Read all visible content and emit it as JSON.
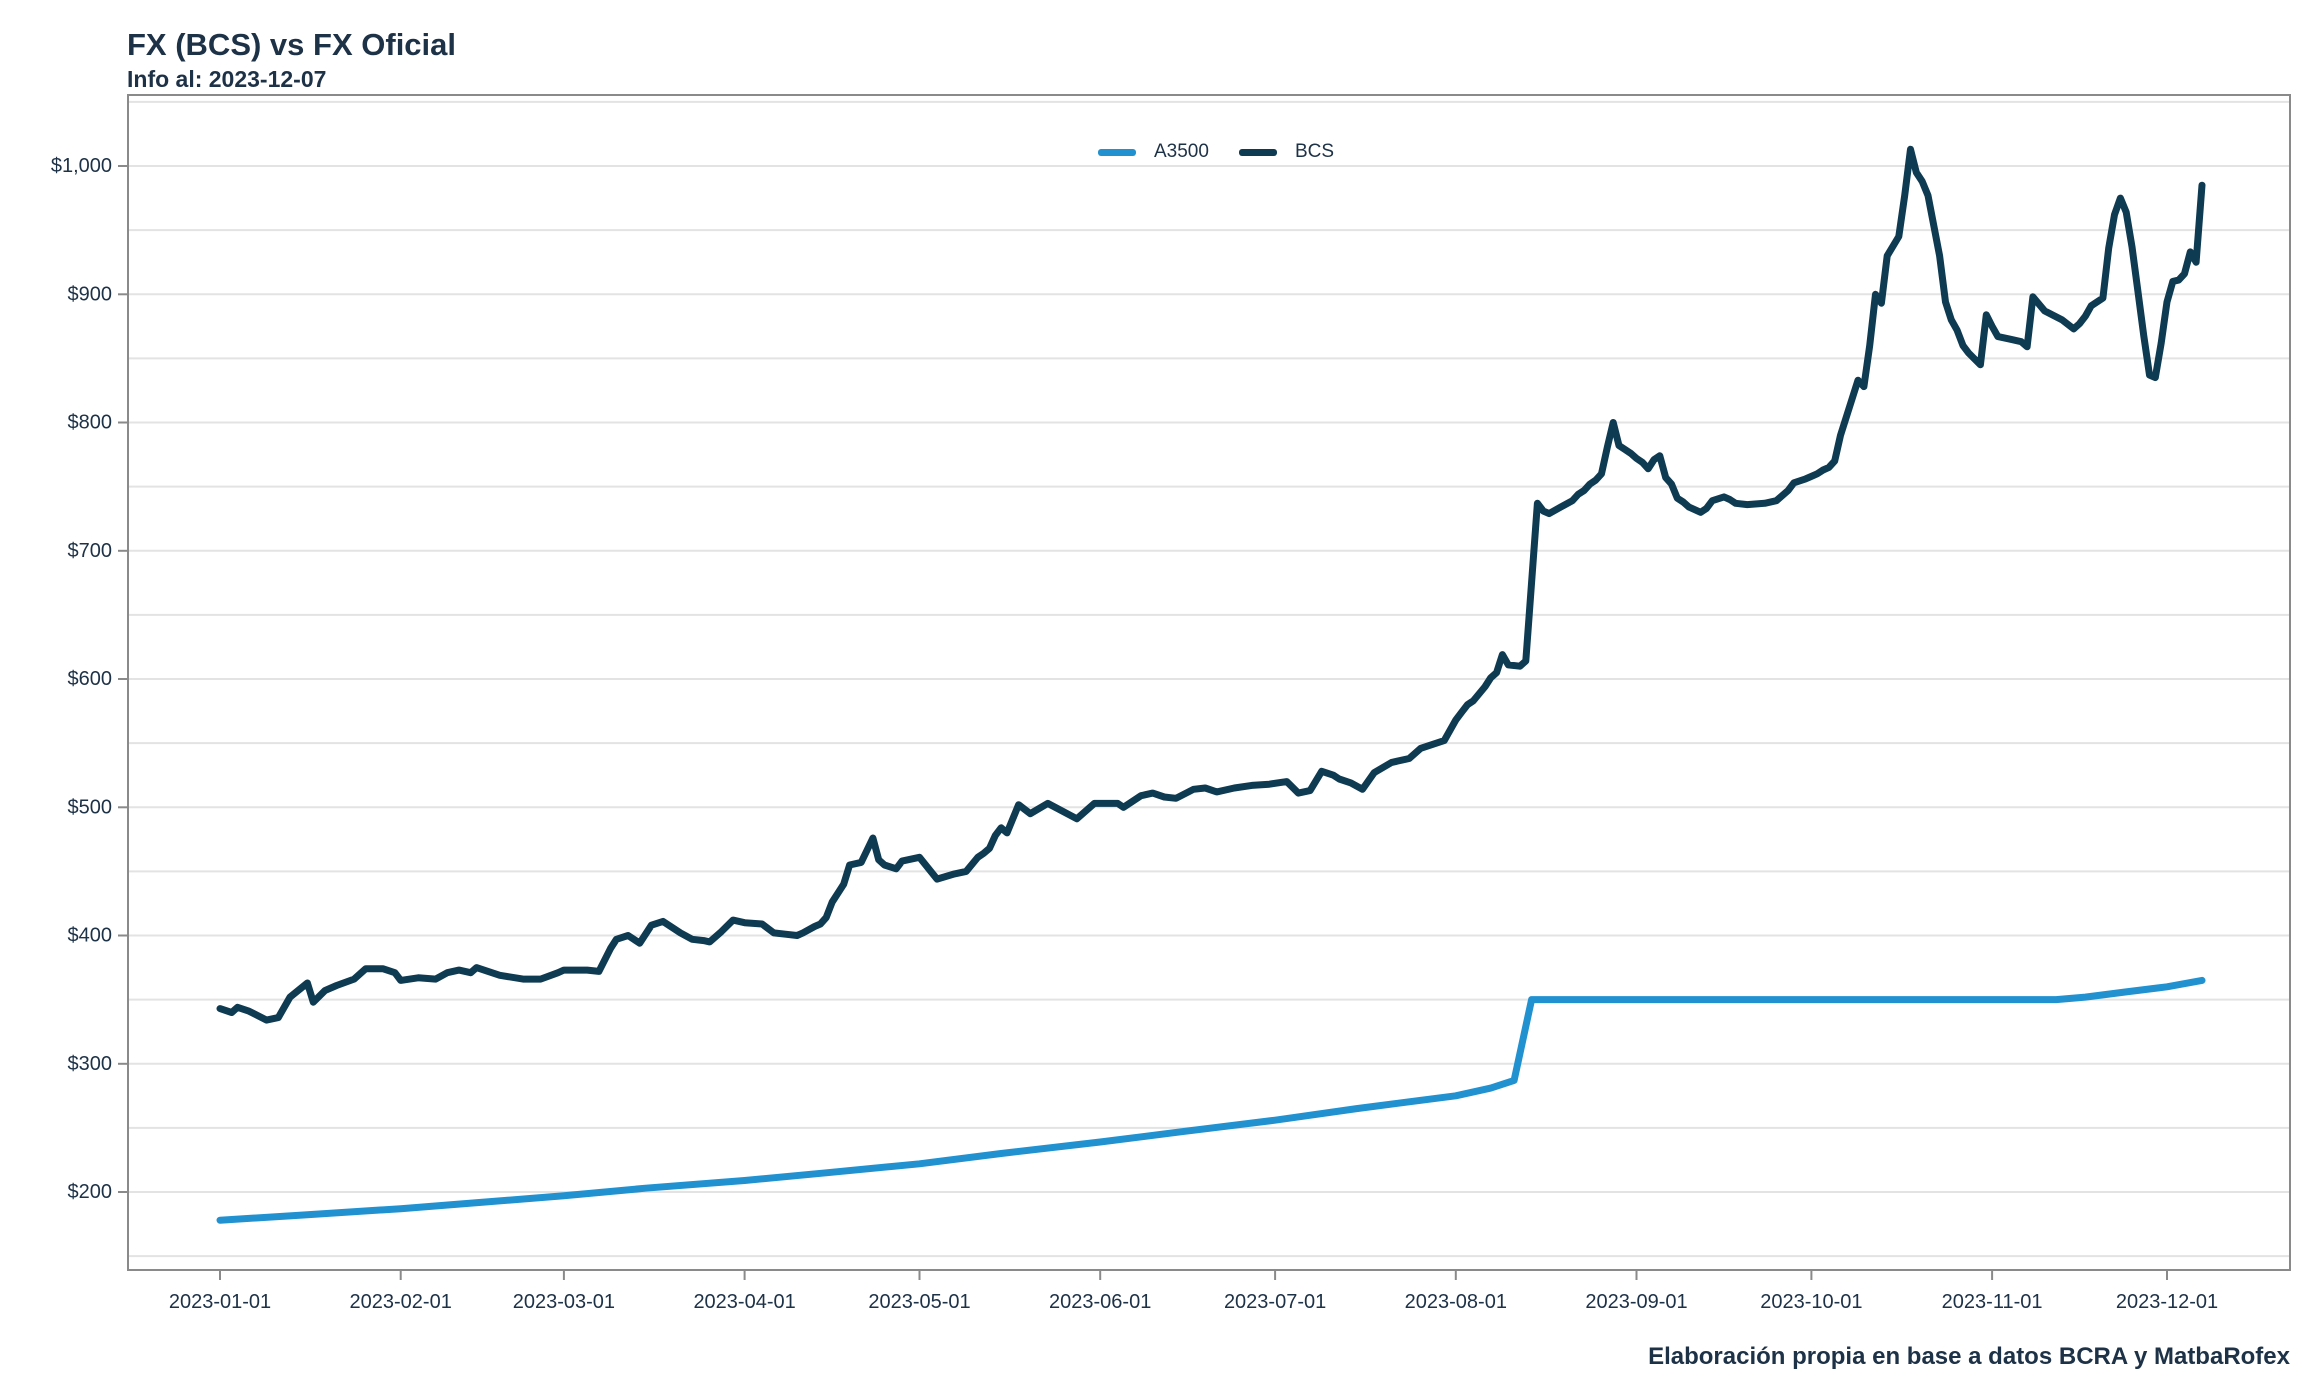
{
  "page": {
    "title": "FX (BCS) vs FX Oficial",
    "subtitle": "Info al: 2023-12-07",
    "footer": "Elaboración propia en base a datos BCRA y MatbaRofex"
  },
  "colors": {
    "a3500_line": "#2191d0",
    "bcs_line": "#0e3a52",
    "text": "#1d3147",
    "gridline": "#e3e3e3",
    "axis_border": "#8a8a8a",
    "background": "#ffffff"
  },
  "legend": {
    "entries": [
      {
        "label": "A3500",
        "color": "#2191d0"
      },
      {
        "label": "BCS",
        "color": "#0e3a52"
      }
    ]
  },
  "chart_data": {
    "type": "line",
    "title": "FX (BCS) vs FX Oficial",
    "subtitle": "Info al: 2023-12-07",
    "xlabel": "",
    "ylabel": "",
    "grid": "horizontal-only",
    "legend_position": "top-center",
    "ylim": [
      139,
      1057
    ],
    "y_axis": {
      "tick_prefix": "$",
      "labeled_ticks": [
        200,
        300,
        400,
        500,
        600,
        700,
        800,
        900,
        1000
      ],
      "tick_labels": [
        "$200",
        "$300",
        "$400",
        "$500",
        "$600",
        "$700",
        "$800",
        "$900",
        "$1,000"
      ],
      "gridline_values": [
        150,
        200,
        250,
        300,
        350,
        400,
        450,
        500,
        550,
        600,
        650,
        700,
        750,
        800,
        850,
        900,
        950,
        1000,
        1050
      ]
    },
    "x_axis": {
      "type": "date",
      "ticks": [
        "2023-01-01",
        "2023-02-01",
        "2023-03-01",
        "2023-04-01",
        "2023-05-01",
        "2023-06-01",
        "2023-07-01",
        "2023-08-01",
        "2023-09-01",
        "2023-10-01",
        "2023-11-01",
        "2023-12-01"
      ],
      "range": [
        "2023-01-01",
        "2023-12-07"
      ]
    },
    "series": [
      {
        "name": "A3500",
        "color": "#2191d0",
        "points": [
          [
            "2023-01-01",
            178
          ],
          [
            "2023-01-15",
            182
          ],
          [
            "2023-02-01",
            187
          ],
          [
            "2023-02-15",
            192
          ],
          [
            "2023-03-01",
            197
          ],
          [
            "2023-03-15",
            203
          ],
          [
            "2023-04-01",
            209
          ],
          [
            "2023-04-15",
            215
          ],
          [
            "2023-05-01",
            222
          ],
          [
            "2023-05-15",
            230
          ],
          [
            "2023-06-01",
            239
          ],
          [
            "2023-06-15",
            247
          ],
          [
            "2023-07-01",
            256
          ],
          [
            "2023-07-15",
            265
          ],
          [
            "2023-08-01",
            275
          ],
          [
            "2023-08-07",
            281
          ],
          [
            "2023-08-11",
            287
          ],
          [
            "2023-08-14",
            350
          ],
          [
            "2023-09-01",
            350
          ],
          [
            "2023-10-01",
            350
          ],
          [
            "2023-11-01",
            350
          ],
          [
            "2023-11-12",
            350
          ],
          [
            "2023-11-17",
            352
          ],
          [
            "2023-11-24",
            356
          ],
          [
            "2023-12-01",
            360
          ],
          [
            "2023-12-07",
            365
          ]
        ]
      },
      {
        "name": "BCS",
        "color": "#0e3a52",
        "points": [
          [
            "2023-01-01",
            343
          ],
          [
            "2023-01-03",
            340
          ],
          [
            "2023-01-04",
            344
          ],
          [
            "2023-01-06",
            341
          ],
          [
            "2023-01-09",
            334
          ],
          [
            "2023-01-11",
            336
          ],
          [
            "2023-01-13",
            352
          ],
          [
            "2023-01-16",
            363
          ],
          [
            "2023-01-17",
            348
          ],
          [
            "2023-01-19",
            357
          ],
          [
            "2023-01-21",
            361
          ],
          [
            "2023-01-24",
            366
          ],
          [
            "2023-01-26",
            374
          ],
          [
            "2023-01-29",
            374
          ],
          [
            "2023-01-31",
            371
          ],
          [
            "2023-02-01",
            365
          ],
          [
            "2023-02-04",
            367
          ],
          [
            "2023-02-07",
            366
          ],
          [
            "2023-02-09",
            371
          ],
          [
            "2023-02-11",
            373
          ],
          [
            "2023-02-13",
            371
          ],
          [
            "2023-02-14",
            375
          ],
          [
            "2023-02-16",
            372
          ],
          [
            "2023-02-18",
            369
          ],
          [
            "2023-02-22",
            366
          ],
          [
            "2023-02-25",
            366
          ],
          [
            "2023-02-28",
            371
          ],
          [
            "2023-03-01",
            373
          ],
          [
            "2023-03-05",
            373
          ],
          [
            "2023-03-07",
            372
          ],
          [
            "2023-03-09",
            390
          ],
          [
            "2023-03-10",
            397
          ],
          [
            "2023-03-12",
            400
          ],
          [
            "2023-03-14",
            394
          ],
          [
            "2023-03-16",
            408
          ],
          [
            "2023-03-18",
            411
          ],
          [
            "2023-03-21",
            402
          ],
          [
            "2023-03-23",
            397
          ],
          [
            "2023-03-25",
            396
          ],
          [
            "2023-03-26",
            395
          ],
          [
            "2023-03-28",
            403
          ],
          [
            "2023-03-30",
            412
          ],
          [
            "2023-04-01",
            410
          ],
          [
            "2023-04-04",
            409
          ],
          [
            "2023-04-06",
            402
          ],
          [
            "2023-04-08",
            401
          ],
          [
            "2023-04-10",
            400
          ],
          [
            "2023-04-11",
            402
          ],
          [
            "2023-04-13",
            407
          ],
          [
            "2023-04-14",
            409
          ],
          [
            "2023-04-15",
            414
          ],
          [
            "2023-04-16",
            426
          ],
          [
            "2023-04-18",
            440
          ],
          [
            "2023-04-19",
            455
          ],
          [
            "2023-04-21",
            457
          ],
          [
            "2023-04-23",
            476
          ],
          [
            "2023-04-24",
            459
          ],
          [
            "2023-04-25",
            455
          ],
          [
            "2023-04-27",
            452
          ],
          [
            "2023-04-28",
            458
          ],
          [
            "2023-05-01",
            461
          ],
          [
            "2023-05-04",
            444
          ],
          [
            "2023-05-07",
            448
          ],
          [
            "2023-05-09",
            450
          ],
          [
            "2023-05-11",
            461
          ],
          [
            "2023-05-12",
            464
          ],
          [
            "2023-05-13",
            468
          ],
          [
            "2023-05-14",
            478
          ],
          [
            "2023-05-15",
            484
          ],
          [
            "2023-05-16",
            480
          ],
          [
            "2023-05-18",
            502
          ],
          [
            "2023-05-20",
            495
          ],
          [
            "2023-05-23",
            503
          ],
          [
            "2023-05-28",
            491
          ],
          [
            "2023-05-31",
            503
          ],
          [
            "2023-06-04",
            503
          ],
          [
            "2023-06-05",
            500
          ],
          [
            "2023-06-08",
            509
          ],
          [
            "2023-06-10",
            511
          ],
          [
            "2023-06-12",
            508
          ],
          [
            "2023-06-14",
            507
          ],
          [
            "2023-06-17",
            514
          ],
          [
            "2023-06-19",
            515
          ],
          [
            "2023-06-21",
            512
          ],
          [
            "2023-06-24",
            515
          ],
          [
            "2023-06-27",
            517
          ],
          [
            "2023-06-30",
            518
          ],
          [
            "2023-07-03",
            520
          ],
          [
            "2023-07-05",
            511
          ],
          [
            "2023-07-07",
            513
          ],
          [
            "2023-07-09",
            528
          ],
          [
            "2023-07-11",
            525
          ],
          [
            "2023-07-12",
            522
          ],
          [
            "2023-07-14",
            519
          ],
          [
            "2023-07-16",
            514
          ],
          [
            "2023-07-18",
            527
          ],
          [
            "2023-07-21",
            535
          ],
          [
            "2023-07-24",
            538
          ],
          [
            "2023-07-26",
            546
          ],
          [
            "2023-07-28",
            549
          ],
          [
            "2023-07-30",
            552
          ],
          [
            "2023-08-01",
            568
          ],
          [
            "2023-08-02",
            574
          ],
          [
            "2023-08-03",
            580
          ],
          [
            "2023-08-04",
            583
          ],
          [
            "2023-08-06",
            594
          ],
          [
            "2023-08-07",
            601
          ],
          [
            "2023-08-08",
            605
          ],
          [
            "2023-08-09",
            619
          ],
          [
            "2023-08-10",
            611
          ],
          [
            "2023-08-12",
            610
          ],
          [
            "2023-08-13",
            614
          ],
          [
            "2023-08-15",
            737
          ],
          [
            "2023-08-16",
            731
          ],
          [
            "2023-08-17",
            729
          ],
          [
            "2023-08-19",
            734
          ],
          [
            "2023-08-21",
            739
          ],
          [
            "2023-08-22",
            744
          ],
          [
            "2023-08-23",
            747
          ],
          [
            "2023-08-24",
            752
          ],
          [
            "2023-08-25",
            755
          ],
          [
            "2023-08-26",
            760
          ],
          [
            "2023-08-27",
            781
          ],
          [
            "2023-08-28",
            800
          ],
          [
            "2023-08-29",
            782
          ],
          [
            "2023-08-30",
            779
          ],
          [
            "2023-08-31",
            776
          ],
          [
            "2023-09-01",
            772
          ],
          [
            "2023-09-02",
            769
          ],
          [
            "2023-09-03",
            764
          ],
          [
            "2023-09-04",
            771
          ],
          [
            "2023-09-05",
            774
          ],
          [
            "2023-09-06",
            757
          ],
          [
            "2023-09-07",
            752
          ],
          [
            "2023-09-08",
            741
          ],
          [
            "2023-09-09",
            738
          ],
          [
            "2023-09-10",
            734
          ],
          [
            "2023-09-12",
            730
          ],
          [
            "2023-09-13",
            733
          ],
          [
            "2023-09-14",
            739
          ],
          [
            "2023-09-16",
            742
          ],
          [
            "2023-09-17",
            740
          ],
          [
            "2023-09-18",
            737
          ],
          [
            "2023-09-20",
            736
          ],
          [
            "2023-09-23",
            737
          ],
          [
            "2023-09-25",
            739
          ],
          [
            "2023-09-27",
            747
          ],
          [
            "2023-09-28",
            753
          ],
          [
            "2023-09-30",
            756
          ],
          [
            "2023-10-01",
            758
          ],
          [
            "2023-10-02",
            760
          ],
          [
            "2023-10-03",
            763
          ],
          [
            "2023-10-04",
            765
          ],
          [
            "2023-10-05",
            770
          ],
          [
            "2023-10-06",
            790
          ],
          [
            "2023-10-09",
            833
          ],
          [
            "2023-10-10",
            828
          ],
          [
            "2023-10-11",
            860
          ],
          [
            "2023-10-12",
            900
          ],
          [
            "2023-10-13",
            893
          ],
          [
            "2023-10-14",
            930
          ],
          [
            "2023-10-16",
            945
          ],
          [
            "2023-10-17",
            977
          ],
          [
            "2023-10-18",
            1013
          ],
          [
            "2023-10-19",
            995
          ],
          [
            "2023-10-20",
            988
          ],
          [
            "2023-10-21",
            977
          ],
          [
            "2023-10-23",
            930
          ],
          [
            "2023-10-24",
            894
          ],
          [
            "2023-10-25",
            880
          ],
          [
            "2023-10-26",
            872
          ],
          [
            "2023-10-27",
            860
          ],
          [
            "2023-10-28",
            854
          ],
          [
            "2023-10-30",
            845
          ],
          [
            "2023-10-31",
            884
          ],
          [
            "2023-11-01",
            875
          ],
          [
            "2023-11-02",
            867
          ],
          [
            "2023-11-04",
            865
          ],
          [
            "2023-11-06",
            863
          ],
          [
            "2023-11-07",
            859
          ],
          [
            "2023-11-08",
            898
          ],
          [
            "2023-11-10",
            887
          ],
          [
            "2023-11-13",
            880
          ],
          [
            "2023-11-15",
            873
          ],
          [
            "2023-11-16",
            877
          ],
          [
            "2023-11-17",
            883
          ],
          [
            "2023-11-18",
            891
          ],
          [
            "2023-11-20",
            897
          ],
          [
            "2023-11-21",
            936
          ],
          [
            "2023-11-22",
            962
          ],
          [
            "2023-11-23",
            975
          ],
          [
            "2023-11-24",
            964
          ],
          [
            "2023-11-25",
            937
          ],
          [
            "2023-11-26",
            903
          ],
          [
            "2023-11-27",
            868
          ],
          [
            "2023-11-28",
            837
          ],
          [
            "2023-11-29",
            835
          ],
          [
            "2023-11-30",
            862
          ],
          [
            "2023-12-01",
            894
          ],
          [
            "2023-12-02",
            910
          ],
          [
            "2023-12-03",
            911
          ],
          [
            "2023-12-04",
            916
          ],
          [
            "2023-12-05",
            933
          ],
          [
            "2023-12-06",
            925
          ],
          [
            "2023-12-07",
            985
          ]
        ]
      }
    ]
  }
}
